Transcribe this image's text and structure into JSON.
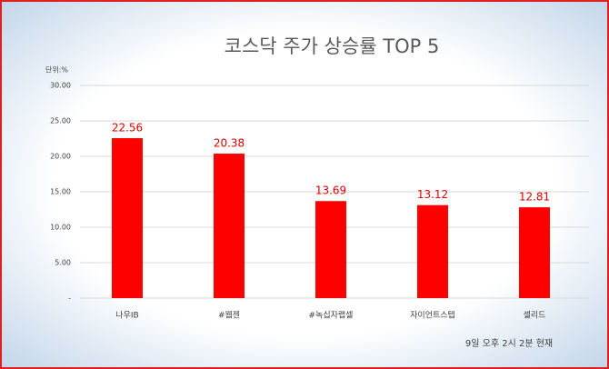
{
  "chart_data": {
    "type": "bar",
    "title": "코스닥 주가 상승률 TOP 5",
    "unit_label": "단위:%",
    "footnote": "9일 오후 2시 2분 현재",
    "categories": [
      "나우IB",
      "#웹젠",
      "#녹십자랩셀",
      "자이언트스텝",
      "셀리드"
    ],
    "values": [
      22.56,
      20.38,
      13.69,
      13.12,
      12.81
    ],
    "color": "#ff0000",
    "label_color": "#e00000",
    "ylim": [
      0,
      30
    ],
    "yticks": [
      {
        "value": 0,
        "label": "-"
      },
      {
        "value": 5,
        "label": "5.00"
      },
      {
        "value": 10,
        "label": "10.00"
      },
      {
        "value": 15,
        "label": "15.00"
      },
      {
        "value": 20,
        "label": "20.00"
      },
      {
        "value": 25,
        "label": "25.00"
      },
      {
        "value": 30,
        "label": "30.00"
      }
    ],
    "grid": true
  }
}
